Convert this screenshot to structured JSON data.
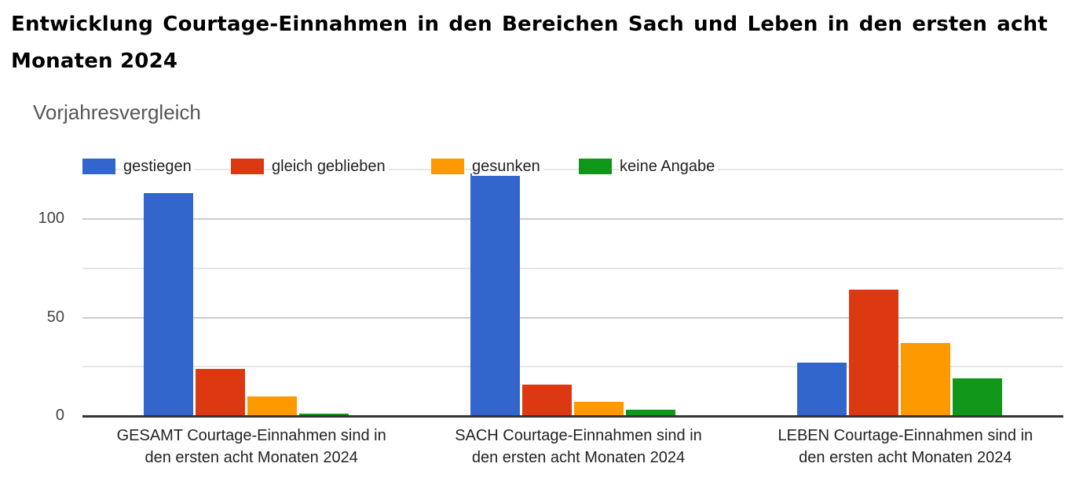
{
  "page": {
    "title": "Entwicklung Courtage-Einnahmen in den Bereichen Sach und Leben in den ersten acht Monaten 2024"
  },
  "chart_data": {
    "type": "bar",
    "title": "Vorjahresvergleich",
    "xlabel": "",
    "ylabel": "",
    "ylim": [
      0,
      125
    ],
    "yticks": [
      0,
      50,
      100
    ],
    "gridlines": [
      0,
      25,
      50,
      75,
      100,
      125
    ],
    "grid": true,
    "legend_position": "top",
    "categories": [
      "GESAMT Courtage-Einnahmen sind in den ersten acht Monaten 2024",
      "SACH Courtage-Einnahmen sind in den ersten acht Monaten 2024",
      "LEBEN Courtage-Einnahmen sind in den ersten acht Monaten 2024"
    ],
    "category_lines": [
      [
        "GESAMT Courtage-Einnahmen sind in",
        "den ersten acht Monaten 2024"
      ],
      [
        "SACH Courtage-Einnahmen sind in",
        "den ersten acht Monaten 2024"
      ],
      [
        "LEBEN Courtage-Einnahmen sind in",
        "den ersten acht Monaten 2024"
      ]
    ],
    "series": [
      {
        "name": "gestiegen",
        "color": "#3366cc",
        "values": [
          113,
          123,
          27
        ]
      },
      {
        "name": "gleich geblieben",
        "color": "#dc3912",
        "values": [
          24,
          16,
          64
        ]
      },
      {
        "name": "gesunken",
        "color": "#ff9900",
        "values": [
          10,
          7,
          37
        ]
      },
      {
        "name": "keine Angabe",
        "color": "#109618",
        "values": [
          1,
          3,
          19
        ]
      }
    ]
  }
}
